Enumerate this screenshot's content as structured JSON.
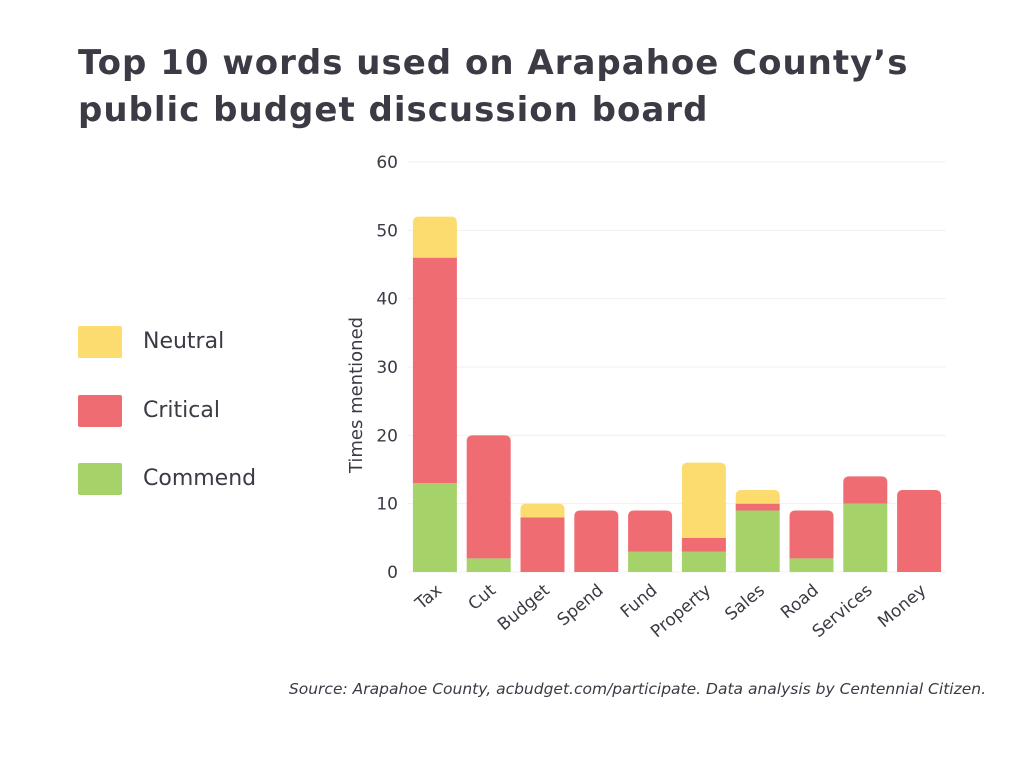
{
  "chart_data": {
    "type": "bar",
    "stacked": true,
    "title": "Top 10 words used on Arapahoe County’s public budget discussion board",
    "xlabel": "",
    "ylabel": "Times mentioned",
    "ylim": [
      0,
      60
    ],
    "yticks": [
      0,
      10,
      20,
      30,
      40,
      50,
      60
    ],
    "grid": true,
    "legend_position": "left",
    "categories": [
      "Tax",
      "Cut",
      "Budget",
      "Spend",
      "Fund",
      "Property",
      "Sales",
      "Road",
      "Services",
      "Money"
    ],
    "series": [
      {
        "name": "Commend",
        "color": "#a6d26a",
        "values": [
          13,
          2,
          0,
          0,
          3,
          3,
          9,
          2,
          10,
          0
        ]
      },
      {
        "name": "Critical",
        "color": "#ef6c72",
        "values": [
          33,
          18,
          8,
          9,
          6,
          2,
          1,
          7,
          4,
          12
        ]
      },
      {
        "name": "Neutral",
        "color": "#fcdc6e",
        "values": [
          6,
          0,
          2,
          0,
          0,
          11,
          2,
          0,
          0,
          0
        ]
      }
    ],
    "legend_order": [
      "Neutral",
      "Critical",
      "Commend"
    ],
    "source": "Source: Arapahoe County, acbudget.com/participate. Data analysis by Centennial Citizen."
  }
}
